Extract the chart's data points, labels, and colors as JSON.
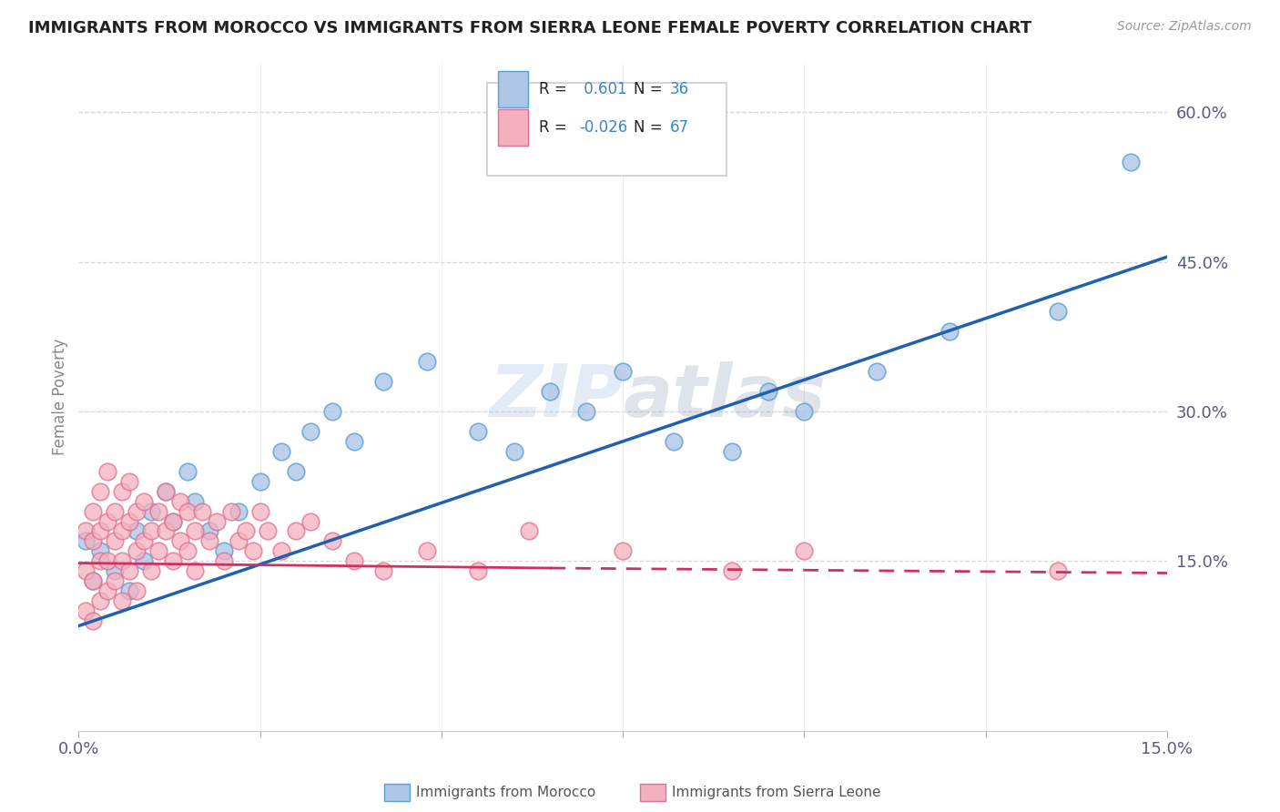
{
  "title": "IMMIGRANTS FROM MOROCCO VS IMMIGRANTS FROM SIERRA LEONE FEMALE POVERTY CORRELATION CHART",
  "source_text": "Source: ZipAtlas.com",
  "ylabel": "Female Poverty",
  "xlim": [
    0.0,
    0.15
  ],
  "ylim": [
    -0.02,
    0.65
  ],
  "y_tick_right_values": [
    0.15,
    0.3,
    0.45,
    0.6
  ],
  "y_tick_right_labels": [
    "15.0%",
    "30.0%",
    "45.0%",
    "60.0%"
  ],
  "morocco_color": "#aec6e8",
  "morocco_edge_color": "#5a9fd4",
  "sierra_leone_color": "#f4b0be",
  "sierra_leone_edge_color": "#e07090",
  "morocco_line_color": "#2060b0",
  "sierra_leone_line_color": "#d03060",
  "morocco_R": 0.601,
  "morocco_N": 36,
  "sierra_leone_R": -0.026,
  "sierra_leone_N": 67,
  "watermark": "ZIPatlas",
  "background_color": "#ffffff",
  "grid_color": "#d8d8d8",
  "morocco_x": [
    0.001,
    0.002,
    0.003,
    0.005,
    0.007,
    0.008,
    0.009,
    0.01,
    0.012,
    0.013,
    0.015,
    0.016,
    0.018,
    0.02,
    0.022,
    0.025,
    0.028,
    0.03,
    0.032,
    0.035,
    0.038,
    0.042,
    0.048,
    0.055,
    0.06,
    0.065,
    0.07,
    0.075,
    0.082,
    0.09,
    0.095,
    0.1,
    0.11,
    0.12,
    0.135,
    0.145
  ],
  "morocco_y": [
    0.17,
    0.13,
    0.16,
    0.14,
    0.12,
    0.18,
    0.15,
    0.2,
    0.22,
    0.19,
    0.24,
    0.21,
    0.18,
    0.16,
    0.2,
    0.23,
    0.26,
    0.24,
    0.28,
    0.3,
    0.27,
    0.33,
    0.35,
    0.28,
    0.26,
    0.32,
    0.3,
    0.34,
    0.27,
    0.26,
    0.32,
    0.3,
    0.34,
    0.38,
    0.4,
    0.55
  ],
  "sierra_leone_x": [
    0.001,
    0.001,
    0.001,
    0.002,
    0.002,
    0.002,
    0.002,
    0.003,
    0.003,
    0.003,
    0.003,
    0.004,
    0.004,
    0.004,
    0.004,
    0.005,
    0.005,
    0.005,
    0.006,
    0.006,
    0.006,
    0.006,
    0.007,
    0.007,
    0.007,
    0.008,
    0.008,
    0.008,
    0.009,
    0.009,
    0.01,
    0.01,
    0.011,
    0.011,
    0.012,
    0.012,
    0.013,
    0.013,
    0.014,
    0.014,
    0.015,
    0.015,
    0.016,
    0.016,
    0.017,
    0.018,
    0.019,
    0.02,
    0.021,
    0.022,
    0.023,
    0.024,
    0.025,
    0.026,
    0.028,
    0.03,
    0.032,
    0.035,
    0.038,
    0.042,
    0.048,
    0.055,
    0.062,
    0.075,
    0.09,
    0.1,
    0.135
  ],
  "sierra_leone_y": [
    0.18,
    0.14,
    0.1,
    0.2,
    0.17,
    0.13,
    0.09,
    0.22,
    0.18,
    0.15,
    0.11,
    0.24,
    0.19,
    0.15,
    0.12,
    0.2,
    0.17,
    0.13,
    0.22,
    0.18,
    0.15,
    0.11,
    0.23,
    0.19,
    0.14,
    0.2,
    0.16,
    0.12,
    0.21,
    0.17,
    0.18,
    0.14,
    0.2,
    0.16,
    0.22,
    0.18,
    0.19,
    0.15,
    0.21,
    0.17,
    0.2,
    0.16,
    0.18,
    0.14,
    0.2,
    0.17,
    0.19,
    0.15,
    0.2,
    0.17,
    0.18,
    0.16,
    0.2,
    0.18,
    0.16,
    0.18,
    0.19,
    0.17,
    0.15,
    0.14,
    0.16,
    0.14,
    0.18,
    0.16,
    0.14,
    0.16,
    0.14
  ]
}
